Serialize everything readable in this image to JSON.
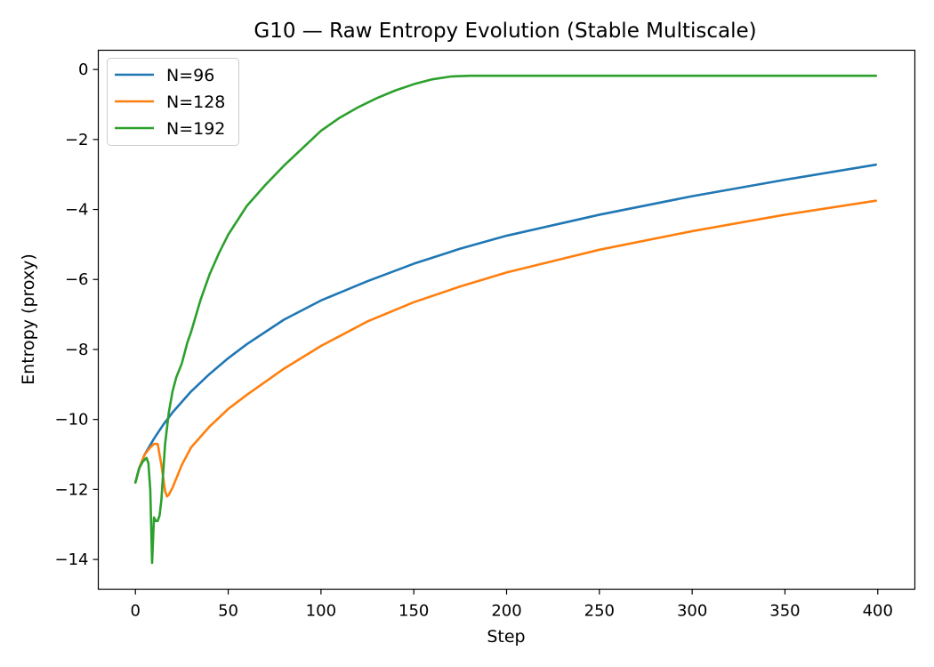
{
  "chart_data": {
    "type": "line",
    "title": "G10 — Raw Entropy Evolution (Stable Multiscale)",
    "xlabel": "Step",
    "ylabel": "Entropy (proxy)",
    "xlim": [
      -20,
      420
    ],
    "ylim": [
      -14.85,
      0.55
    ],
    "xticks": [
      0,
      50,
      100,
      150,
      200,
      250,
      300,
      350,
      400
    ],
    "yticks": [
      0,
      -2,
      -4,
      -6,
      -8,
      -10,
      -12,
      -14
    ],
    "ytick_labels": [
      "0",
      "−2",
      "−4",
      "−6",
      "−8",
      "−10",
      "−12",
      "−14"
    ],
    "grid": false,
    "legend_position": "top-left",
    "series": [
      {
        "name": "N=96",
        "color": "#1f77b4",
        "x": [
          0,
          2,
          5,
          10,
          15,
          20,
          30,
          40,
          50,
          60,
          80,
          100,
          125,
          150,
          175,
          200,
          250,
          300,
          350,
          399
        ],
        "y": [
          -11.8,
          -11.4,
          -11.0,
          -10.55,
          -10.15,
          -9.8,
          -9.2,
          -8.7,
          -8.25,
          -7.85,
          -7.15,
          -6.6,
          -6.05,
          -5.55,
          -5.12,
          -4.75,
          -4.15,
          -3.62,
          -3.15,
          -2.72
        ]
      },
      {
        "name": "N=128",
        "color": "#ff7f0e",
        "x": [
          0,
          2,
          5,
          8,
          10,
          12,
          14,
          16,
          17,
          18,
          20,
          25,
          30,
          40,
          50,
          60,
          80,
          100,
          125,
          150,
          175,
          200,
          250,
          300,
          350,
          399
        ],
        "y": [
          -11.8,
          -11.4,
          -11.0,
          -10.8,
          -10.7,
          -10.7,
          -11.3,
          -12.05,
          -12.2,
          -12.15,
          -11.95,
          -11.3,
          -10.8,
          -10.2,
          -9.7,
          -9.3,
          -8.55,
          -7.9,
          -7.2,
          -6.65,
          -6.2,
          -5.8,
          -5.15,
          -4.62,
          -4.15,
          -3.75
        ]
      },
      {
        "name": "N=192",
        "color": "#2ca02c",
        "x": [
          0,
          2,
          4,
          6,
          7,
          8,
          9,
          10,
          11,
          12,
          13,
          14,
          15,
          16,
          18,
          20,
          22,
          25,
          28,
          30,
          35,
          40,
          45,
          50,
          60,
          70,
          80,
          90,
          100,
          110,
          120,
          130,
          140,
          150,
          160,
          170,
          180,
          190,
          200,
          250,
          300,
          350,
          399
        ],
        "y": [
          -11.8,
          -11.4,
          -11.2,
          -11.1,
          -11.25,
          -12.0,
          -14.1,
          -12.8,
          -12.9,
          -12.9,
          -12.75,
          -12.3,
          -11.5,
          -10.7,
          -9.8,
          -9.2,
          -8.8,
          -8.4,
          -7.8,
          -7.5,
          -6.6,
          -5.85,
          -5.25,
          -4.72,
          -3.9,
          -3.3,
          -2.75,
          -2.25,
          -1.75,
          -1.38,
          -1.08,
          -0.82,
          -0.6,
          -0.42,
          -0.28,
          -0.2,
          -0.18,
          -0.18,
          -0.18,
          -0.18,
          -0.18,
          -0.18,
          -0.18
        ]
      }
    ]
  }
}
